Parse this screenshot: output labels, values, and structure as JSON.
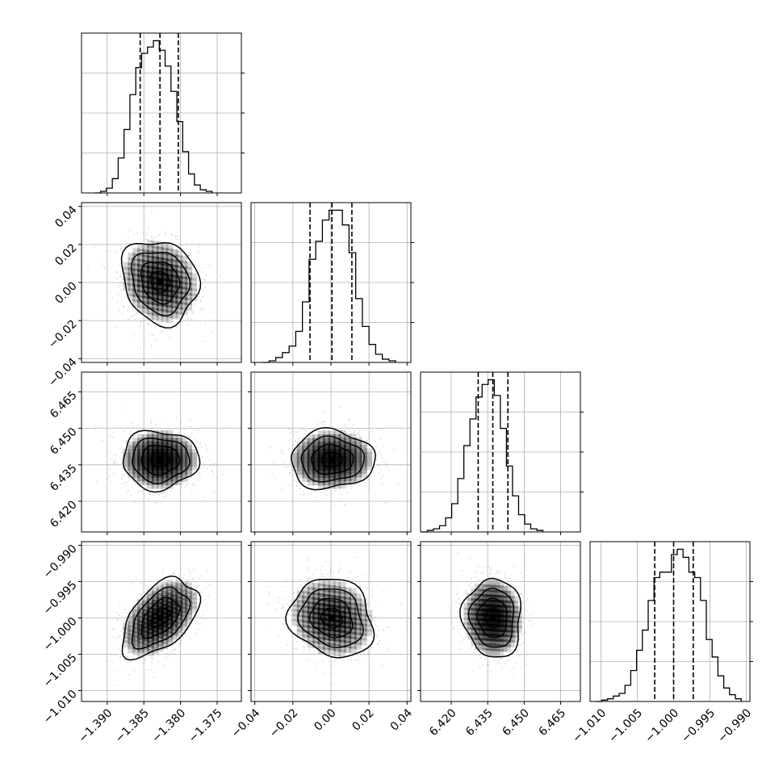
{
  "chart_data": {
    "type": "corner",
    "params": [
      {
        "range": [
          -1.3935,
          -1.3717
        ],
        "ticks": [
          -1.39,
          -1.385,
          -1.38,
          -1.375
        ],
        "tick_labels": [
          "−1.390",
          "−1.385",
          "−1.380",
          "−1.375"
        ],
        "quantiles": [
          -1.3855,
          -1.3828,
          -1.3803
        ],
        "hist_edges": [
          -1.3917,
          -1.3909,
          -1.3901,
          -1.3893,
          -1.3885,
          -1.3877,
          -1.3869,
          -1.3861,
          -1.3853,
          -1.3845,
          -1.3837,
          -1.3829,
          -1.3821,
          -1.3813,
          -1.3805,
          -1.3797,
          -1.3789,
          -1.3781,
          -1.3773,
          -1.3765,
          -1.3757
        ],
        "hist_counts": [
          0,
          1,
          3,
          9,
          22,
          40,
          62,
          79,
          88,
          92,
          96,
          90,
          80,
          64,
          45,
          26,
          12,
          5,
          2,
          1
        ]
      },
      {
        "range": [
          -0.042,
          0.042
        ],
        "ticks": [
          -0.04,
          -0.02,
          0.0,
          0.02,
          0.04
        ],
        "tick_labels": [
          "−0.04",
          "−0.02",
          "0.00",
          "0.02",
          "0.04"
        ],
        "quantiles": [
          -0.011,
          0.0005,
          0.011
        ],
        "hist_edges": [
          -0.036,
          -0.0325,
          -0.029,
          -0.0255,
          -0.022,
          -0.0185,
          -0.015,
          -0.0115,
          -0.008,
          -0.0045,
          -0.001,
          0.0025,
          0.006,
          0.0095,
          0.013,
          0.0165,
          0.02,
          0.0235,
          0.027,
          0.0305,
          0.034
        ],
        "hist_counts": [
          0,
          1,
          3,
          6,
          10,
          19,
          37,
          63,
          74,
          87,
          93,
          93,
          84,
          67,
          39,
          22,
          11,
          5,
          2,
          1
        ]
      },
      {
        "range": [
          6.4074,
          6.4731
        ],
        "ticks": [
          6.42,
          6.435,
          6.45,
          6.465
        ],
        "tick_labels": [
          "6.420",
          "6.435",
          "6.450",
          "6.465"
        ],
        "quantiles": [
          6.4311,
          6.4371,
          6.4433
        ],
        "hist_edges": [
          6.4077,
          6.4102,
          6.4127,
          6.4152,
          6.4177,
          6.4202,
          6.4227,
          6.4252,
          6.4277,
          6.4302,
          6.4327,
          6.4352,
          6.4377,
          6.4402,
          6.4427,
          6.4452,
          6.4477,
          6.4502,
          6.4527,
          6.4552,
          6.4577
        ],
        "hist_counts": [
          0,
          1,
          2,
          4,
          9,
          18,
          34,
          55,
          72,
          86,
          94,
          97,
          87,
          66,
          42,
          23,
          11,
          5,
          2,
          1
        ]
      },
      {
        "range": [
          -1.0115,
          -0.9895
        ],
        "ticks": [
          -1.01,
          -1.005,
          -1.0,
          -0.995,
          -0.99
        ],
        "tick_labels": [
          "−1.010",
          "−1.005",
          "−1.000",
          "−0.995",
          "−0.990"
        ],
        "quantiles": [
          -1.0026,
          -1.0,
          -0.9973
        ],
        "hist_edges": [
          -1.0107,
          -1.0099,
          -1.0091,
          -1.0083,
          -1.0075,
          -1.0067,
          -1.0059,
          -1.0051,
          -1.0043,
          -1.0035,
          -1.0027,
          -1.0019,
          -1.0011,
          -1.0003,
          -0.9995,
          -0.9987,
          -0.9979,
          -0.9971,
          -0.9963,
          -0.9955,
          -0.9947,
          -0.9939,
          -0.9931,
          -0.9923,
          -0.9915,
          -0.9907
        ],
        "hist_counts": [
          0,
          1,
          2,
          4,
          6,
          12,
          23,
          38,
          53,
          75,
          92,
          96,
          96,
          109,
          113,
          107,
          96,
          92,
          75,
          46,
          33,
          19,
          10,
          5,
          2
        ]
      }
    ],
    "pairs": [
      {
        "row": 1,
        "col": 0,
        "center": [
          -1.3828,
          0.0005
        ],
        "sigma": [
          0.0026,
          0.011
        ],
        "rho": -0.15
      },
      {
        "row": 2,
        "col": 0,
        "center": [
          -1.3828,
          6.4371
        ],
        "sigma": [
          0.0026,
          0.006
        ],
        "rho": 0.0
      },
      {
        "row": 2,
        "col": 1,
        "center": [
          0.0005,
          6.4371
        ],
        "sigma": [
          0.011,
          0.006
        ],
        "rho": 0.02
      },
      {
        "row": 3,
        "col": 0,
        "center": [
          -1.3828,
          -1.0
        ],
        "sigma": [
          0.0026,
          0.0027
        ],
        "rho": 0.5
      },
      {
        "row": 3,
        "col": 1,
        "center": [
          0.0005,
          -1.0
        ],
        "sigma": [
          0.011,
          0.0027
        ],
        "rho": -0.15
      },
      {
        "row": 3,
        "col": 2,
        "center": [
          6.4371,
          -1.0
        ],
        "sigma": [
          0.006,
          0.0027
        ],
        "rho": -0.05
      }
    ],
    "contour_levels_sigma": [
      0.5,
      1.0,
      1.5,
      2.0
    ],
    "grid": true,
    "colors": {
      "line": "#000000",
      "grid": "#b0b0b0",
      "points": "#9a9a9a",
      "density": "#000000",
      "background": "#ffffff"
    }
  }
}
